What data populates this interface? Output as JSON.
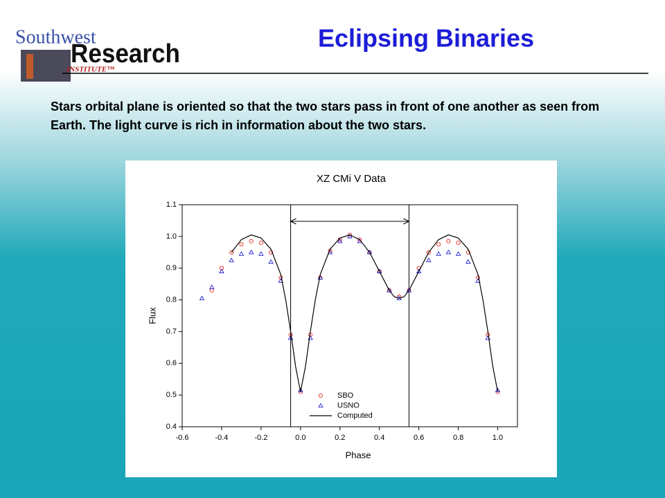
{
  "logo": {
    "line1": "Southwest",
    "line2": "Research",
    "line3": "INSTITUTE™"
  },
  "title": "Eclipsing Binaries",
  "body": "Stars orbital plane is oriented so that the two stars pass in front of one another as seen from Earth. The light curve is rich in information about the two stars.",
  "chart_data": {
    "type": "scatter",
    "title": "XZ CMi V Data",
    "x_label": "Phase",
    "y_label": "Flux",
    "xlim": [
      -0.6,
      1.1
    ],
    "ylim": [
      0.4,
      1.1
    ],
    "xticks": [
      -0.6,
      -0.4,
      -0.2,
      {
        "value": 0,
        "label": "0.0"
      },
      0.2,
      0.4,
      0.6,
      0.8,
      {
        "value": 1,
        "label": "1.0"
      }
    ],
    "yticks": [
      0.4,
      0.5,
      0.6,
      0.7,
      0.8,
      0.9,
      {
        "value": 1,
        "label": "1.0"
      },
      1.1
    ],
    "grid": false,
    "legend": "lower center",
    "vlines": [
      -0.05,
      0.55
    ],
    "series": [
      {
        "name": "SBO",
        "color": "#e8281e",
        "marker": "circle",
        "x": [
          -0.45,
          -0.4,
          -0.35,
          -0.3,
          -0.25,
          -0.2,
          -0.15,
          -0.1,
          -0.05,
          0,
          0.05,
          0.1,
          0.15,
          0.2,
          0.25,
          0.3,
          0.35,
          0.4,
          0.45,
          0.5,
          0.55,
          0.6,
          0.65,
          0.7,
          0.75,
          0.8,
          0.85,
          0.9,
          0.95,
          1.0
        ],
        "values": [
          0.83,
          0.9,
          0.95,
          0.975,
          0.985,
          0.98,
          0.95,
          0.87,
          0.69,
          0.51,
          0.69,
          0.87,
          0.955,
          0.99,
          1.005,
          0.99,
          0.95,
          0.89,
          0.83,
          0.81,
          0.83,
          0.9,
          0.95,
          0.975,
          0.985,
          0.98,
          0.95,
          0.87,
          0.69,
          0.51
        ]
      },
      {
        "name": "USNO",
        "color": "#2020d0",
        "marker": "triangle",
        "x": [
          -0.5,
          -0.45,
          -0.4,
          -0.35,
          -0.3,
          -0.25,
          -0.2,
          -0.15,
          -0.1,
          -0.05,
          0,
          0.05,
          0.1,
          0.15,
          0.2,
          0.25,
          0.3,
          0.35,
          0.4,
          0.45,
          0.5,
          0.55,
          0.6,
          0.65,
          0.7,
          0.75,
          0.8,
          0.85,
          0.9,
          0.95,
          1.0
        ],
        "values": [
          0.805,
          0.84,
          0.89,
          0.925,
          0.945,
          0.95,
          0.945,
          0.92,
          0.86,
          0.68,
          0.515,
          0.68,
          0.87,
          0.95,
          0.985,
          1.0,
          0.985,
          0.95,
          0.89,
          0.83,
          0.805,
          0.83,
          0.89,
          0.925,
          0.945,
          0.95,
          0.945,
          0.92,
          0.86,
          0.68,
          0.515
        ]
      },
      {
        "name": "Computed",
        "color": "#000000",
        "marker": "line",
        "x": [
          -0.35,
          -0.3,
          -0.25,
          -0.2,
          -0.15,
          -0.1,
          -0.075,
          -0.05,
          -0.025,
          0,
          0.025,
          0.05,
          0.075,
          0.1,
          0.15,
          0.2,
          0.25,
          0.3,
          0.35,
          0.4,
          0.45,
          0.475,
          0.5,
          0.525,
          0.55,
          0.6,
          0.65,
          0.7,
          0.75,
          0.8,
          0.85,
          0.9,
          0.925,
          0.95,
          0.975,
          1.0
        ],
        "values": [
          0.95,
          0.99,
          1.005,
          0.995,
          0.96,
          0.88,
          0.8,
          0.7,
          0.59,
          0.51,
          0.59,
          0.7,
          0.8,
          0.88,
          0.96,
          0.995,
          1.005,
          0.99,
          0.95,
          0.89,
          0.83,
          0.81,
          0.805,
          0.81,
          0.83,
          0.89,
          0.95,
          0.99,
          1.005,
          0.995,
          0.96,
          0.88,
          0.8,
          0.7,
          0.59,
          0.51
        ]
      }
    ]
  }
}
